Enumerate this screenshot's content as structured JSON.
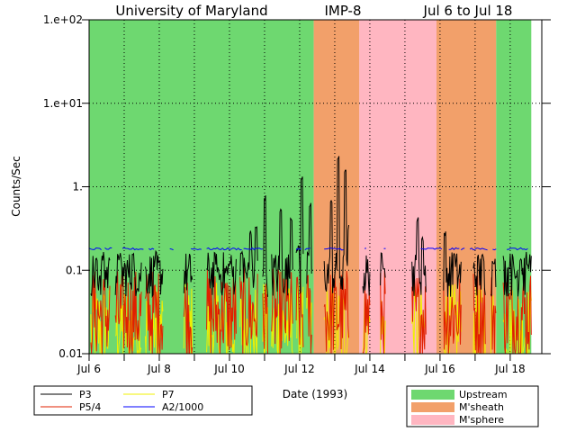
{
  "chart_data": {
    "type": "line",
    "title_parts": [
      "University of Maryland",
      "IMP-8",
      "Jul 6 to Jul 18"
    ],
    "xlabel": "Date (1993)",
    "ylabel": "Counts/Sec",
    "y_scale": "log",
    "ylim": [
      0.01,
      100
    ],
    "xlim": [
      6.0,
      18.9
    ],
    "x_ticks": [
      {
        "x": 6,
        "label": "Jul 6"
      },
      {
        "x": 8,
        "label": "Jul 8"
      },
      {
        "x": 10,
        "label": "Jul 10"
      },
      {
        "x": 12,
        "label": "Jul 12"
      },
      {
        "x": 14,
        "label": "Jul 14"
      },
      {
        "x": 16,
        "label": "Jul 16"
      },
      {
        "x": 18,
        "label": "Jul 18"
      }
    ],
    "y_ticks": [
      {
        "y": 100,
        "label": "1.e+02"
      },
      {
        "y": 10,
        "label": "1.e+01"
      },
      {
        "y": 1,
        "label": "1."
      },
      {
        "y": 0.1,
        "label": "0.1"
      },
      {
        "y": 0.01,
        "label": "0.01"
      }
    ],
    "grid": true,
    "regions": [
      {
        "type": "Upstream",
        "start": 6.0,
        "end": 12.4
      },
      {
        "type": "M'sheath",
        "start": 12.4,
        "end": 13.7
      },
      {
        "type": "M'sphere",
        "start": 13.7,
        "end": 15.9
      },
      {
        "type": "M'sheath",
        "start": 15.9,
        "end": 17.6
      },
      {
        "type": "Upstream",
        "start": 17.6,
        "end": 18.6
      }
    ],
    "region_colors": {
      "Upstream": "#6ed870",
      "M'sheath": "#f2a06a",
      "M'sphere": "#ffb6c1"
    },
    "region_legend": [
      "Upstream",
      "M'sheath",
      "M'sphere"
    ],
    "series": [
      {
        "name": "P3",
        "color": "#000000",
        "segments": [
          [
            6.05,
            6.6
          ],
          [
            6.75,
            7.5
          ],
          [
            7.6,
            8.1
          ],
          [
            8.7,
            8.95
          ],
          [
            9.35,
            10.2
          ],
          [
            10.3,
            10.8
          ],
          [
            10.95,
            11.1
          ],
          [
            11.2,
            11.8
          ],
          [
            11.9,
            12.1
          ],
          [
            12.2,
            12.35
          ],
          [
            12.7,
            13.4
          ],
          [
            13.8,
            14.0
          ],
          [
            14.3,
            14.45
          ],
          [
            15.2,
            15.6
          ],
          [
            16.1,
            16.6
          ],
          [
            16.95,
            17.3
          ],
          [
            17.45,
            17.6
          ],
          [
            17.8,
            18.6
          ]
        ],
        "baseline": 0.09,
        "peaks": [
          [
            6.2,
            0.14
          ],
          [
            6.4,
            0.14
          ],
          [
            6.6,
            0.15
          ],
          [
            6.85,
            0.15
          ],
          [
            7.25,
            0.16
          ],
          [
            7.5,
            0.13
          ],
          [
            7.9,
            0.15
          ],
          [
            9.6,
            0.12
          ],
          [
            10.0,
            0.13
          ],
          [
            10.35,
            0.17
          ],
          [
            10.6,
            0.3
          ],
          [
            10.75,
            0.35
          ],
          [
            11.0,
            0.8
          ],
          [
            11.45,
            0.55
          ],
          [
            11.75,
            0.45
          ],
          [
            11.95,
            0.2
          ],
          [
            12.05,
            1.4
          ],
          [
            12.3,
            0.65
          ],
          [
            12.6,
            0.2
          ],
          [
            12.9,
            0.7
          ],
          [
            13.1,
            2.4
          ],
          [
            13.3,
            1.6
          ],
          [
            13.4,
            0.35
          ],
          [
            14.4,
            0.12
          ],
          [
            15.35,
            0.45
          ],
          [
            15.5,
            0.25
          ],
          [
            16.15,
            0.3
          ],
          [
            16.4,
            0.16
          ],
          [
            16.9,
            0.1
          ],
          [
            17.2,
            0.16
          ],
          [
            17.5,
            0.14
          ],
          [
            18.0,
            0.12
          ],
          [
            18.3,
            0.15
          ],
          [
            18.5,
            0.12
          ]
        ]
      },
      {
        "name": "P5/4",
        "color": "#e02000",
        "segments": [
          [
            6.05,
            6.6
          ],
          [
            6.75,
            7.5
          ],
          [
            7.6,
            8.1
          ],
          [
            8.7,
            8.95
          ],
          [
            9.35,
            10.2
          ],
          [
            10.3,
            10.8
          ],
          [
            10.95,
            11.1
          ],
          [
            11.2,
            11.8
          ],
          [
            11.9,
            12.1
          ],
          [
            12.2,
            12.35
          ],
          [
            12.7,
            13.4
          ],
          [
            13.8,
            14.0
          ],
          [
            14.3,
            14.45
          ],
          [
            15.2,
            15.6
          ],
          [
            16.1,
            16.6
          ],
          [
            16.95,
            17.3
          ],
          [
            17.45,
            17.6
          ],
          [
            17.8,
            18.6
          ]
        ],
        "baseline": 0.03
      },
      {
        "name": "P7",
        "color": "#f0f000",
        "segments": [
          [
            6.05,
            6.6
          ],
          [
            6.75,
            7.5
          ],
          [
            7.6,
            8.1
          ],
          [
            8.7,
            8.95
          ],
          [
            9.35,
            10.2
          ],
          [
            10.3,
            10.8
          ],
          [
            10.95,
            11.1
          ],
          [
            11.2,
            11.8
          ],
          [
            11.9,
            12.1
          ],
          [
            12.2,
            12.35
          ],
          [
            12.7,
            13.4
          ],
          [
            13.8,
            14.0
          ],
          [
            14.3,
            14.45
          ],
          [
            15.2,
            15.6
          ],
          [
            16.1,
            16.6
          ],
          [
            16.95,
            17.3
          ],
          [
            17.45,
            17.6
          ],
          [
            17.8,
            18.6
          ]
        ],
        "baseline": 0.02
      },
      {
        "name": "A2/1000",
        "color": "#0000ff",
        "segments": [
          [
            6.0,
            6.35
          ],
          [
            6.45,
            6.65
          ],
          [
            6.95,
            7.55
          ],
          [
            7.7,
            7.85
          ],
          [
            8.3,
            8.4
          ],
          [
            8.9,
            9.2
          ],
          [
            9.35,
            10.35
          ],
          [
            10.4,
            10.95
          ],
          [
            11.9,
            12.05
          ],
          [
            12.15,
            12.3
          ],
          [
            12.7,
            13.25
          ],
          [
            13.85,
            13.9
          ],
          [
            14.4,
            14.45
          ],
          [
            15.45,
            16.05
          ],
          [
            16.25,
            16.55
          ],
          [
            16.6,
            16.7
          ],
          [
            16.85,
            17.35
          ],
          [
            17.5,
            17.6
          ],
          [
            17.9,
            18.5
          ]
        ],
        "baseline": 0.18
      }
    ]
  }
}
